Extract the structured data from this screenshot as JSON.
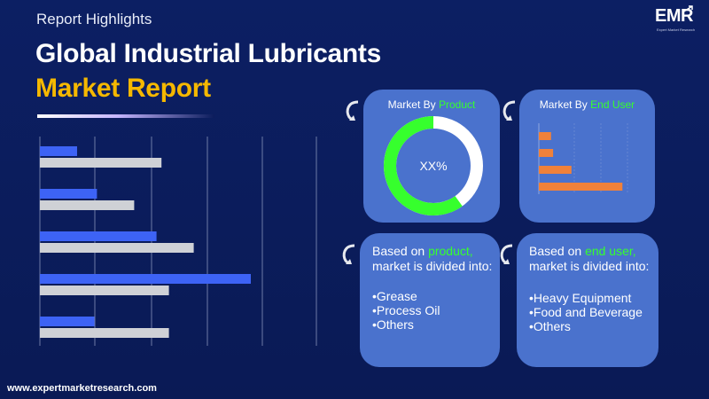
{
  "header": {
    "eyebrow": "Report Highlights",
    "title_line1": "Global Industrial Lubricants",
    "title_line2": "Market Report"
  },
  "logo": {
    "text": "EMR",
    "tagline": "Expert Market Research"
  },
  "colors": {
    "background": "#0b1c5c",
    "title_accent": "#f5b800",
    "card": "#4a72cd",
    "highlight_green": "#36ff2d",
    "bar_blue": "#3d63f5",
    "bar_gray": "#cfd1d6",
    "bar_orange": "#f0813a"
  },
  "decor_chart": {
    "groups": [
      {
        "blue": 0.15,
        "gray": 0.49
      },
      {
        "blue": 0.23,
        "gray": 0.38
      },
      {
        "blue": 0.47,
        "gray": 0.62
      },
      {
        "blue": 0.85,
        "gray": 0.52
      },
      {
        "blue": 0.22,
        "gray": 0.52
      }
    ]
  },
  "product_card": {
    "title_prefix": "Market By ",
    "title_highlight": "Product",
    "donut_label": "XX%",
    "donut_fraction": 0.6
  },
  "enduser_card": {
    "title_prefix": "Market By ",
    "title_highlight": "End User",
    "bars": [
      0.12,
      0.14,
      0.32,
      0.82
    ]
  },
  "product_text": {
    "line1_prefix": "Based on ",
    "line1_highlight": "product,",
    "line2": "market is divided into:",
    "items": [
      "•Grease",
      "•Process Oil",
      "•Others"
    ]
  },
  "enduser_text": {
    "line1_prefix": "Based on ",
    "line1_highlight": "end user,",
    "line2": "market is divided into:",
    "items": [
      "•Heavy Equipment",
      "•Food and Beverage",
      "•Others"
    ]
  },
  "footer": {
    "url": "www.expertmarketresearch.com"
  }
}
